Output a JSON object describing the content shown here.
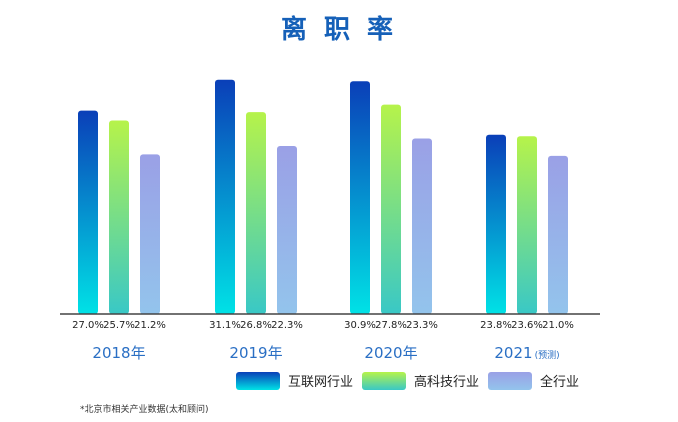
{
  "chart_data": {
    "type": "bar",
    "title": "离 职 率",
    "categories": [
      "2018年",
      "2019年",
      "2020年",
      "2021"
    ],
    "category_suffix": [
      "",
      "",
      "",
      "(预测)"
    ],
    "ylim": [
      0,
      32
    ],
    "grid": false,
    "legend_position": "bottom-right",
    "series": [
      {
        "name": "互联网行业",
        "values": [
          27.0,
          31.1,
          30.9,
          23.8
        ],
        "labels": [
          "27.0%",
          "31.1%",
          "30.9%",
          "23.8%"
        ]
      },
      {
        "name": "高科技行业",
        "values": [
          25.7,
          26.8,
          27.8,
          23.6
        ],
        "labels": [
          "25.7%",
          "26.8%",
          "27.8%",
          "23.6%"
        ]
      },
      {
        "name": "全行业",
        "values": [
          21.2,
          22.3,
          23.3,
          21.0
        ],
        "labels": [
          "21.2%",
          "22.3%",
          "23.3%",
          "21.0%"
        ]
      }
    ],
    "colors": {
      "title": "#1560b8",
      "category": "#2a6fc4",
      "axis": "#444444",
      "value_label": "#222222",
      "series_gradients": [
        [
          "#0a3fb8",
          "#00e2e6"
        ],
        [
          "#b6f34a",
          "#39c8c6"
        ],
        [
          "#9aa0e6",
          "#93c4ec"
        ]
      ]
    },
    "footnote": "*北京市相关产业数据(太和顾问)"
  }
}
